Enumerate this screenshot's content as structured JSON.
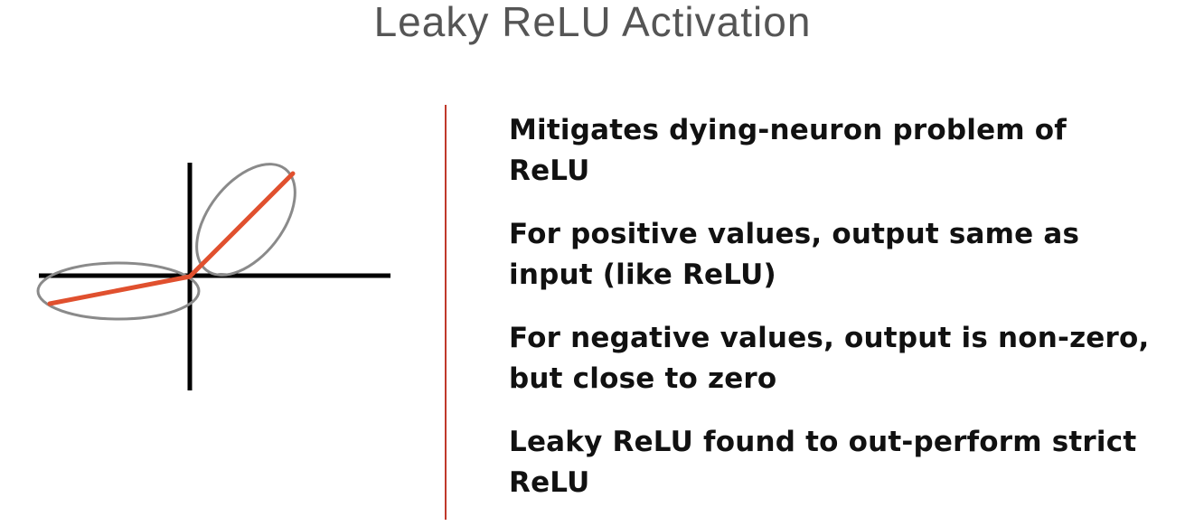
{
  "slide": {
    "title": "Leaky ReLU Activation"
  },
  "diagram": {
    "function": "leaky-relu",
    "positive_slope": 1.0,
    "negative_slope_shown": "small (close to zero)",
    "highlights": [
      "positive-region-ellipse",
      "negative-region-ellipse"
    ],
    "colors": {
      "axes": "#000000",
      "curve": "#e0502e",
      "ellipse": "#8a8a8a",
      "divider": "#c0392b"
    }
  },
  "bullets": [
    {
      "line1": "Mitigates dying-neuron problem of",
      "line2": "ReLU"
    },
    {
      "line1": "For positive values, output same as",
      "line2": "input (like ReLU)"
    },
    {
      "line1": "For negative values, output is non-zero,",
      "line2": "but close to zero"
    },
    {
      "line1": "Leaky ReLU found to out-perform strict",
      "line2": "ReLU"
    }
  ]
}
